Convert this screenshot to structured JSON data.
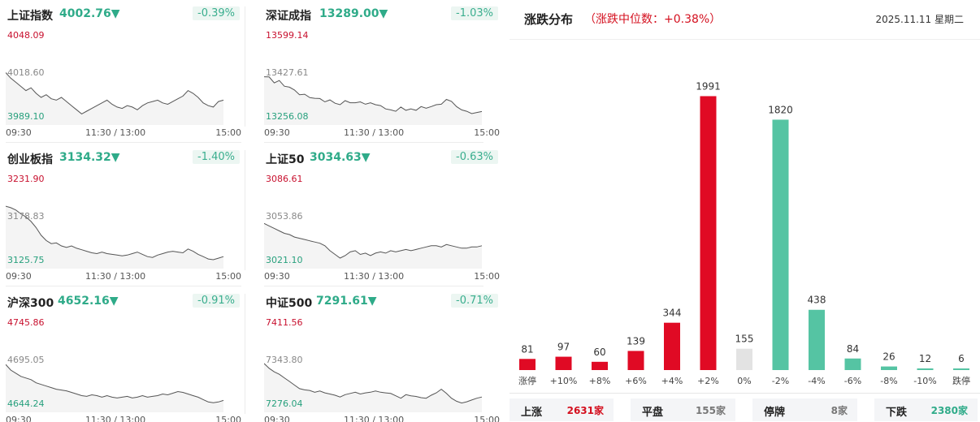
{
  "colors": {
    "up": "#e00a24",
    "down": "#55c4a3",
    "flat": "#e3e3e3",
    "price_down": "#2fab89"
  },
  "indices": [
    {
      "name": "上证指数",
      "price": "4002.76▼",
      "change": "-0.39%",
      "ymax": "4048.09",
      "ymid": "4018.60",
      "ymin": "3989.10",
      "x_start": "09:30",
      "x_mid": "11:30 / 13:00",
      "x_end": "15:00",
      "series": [
        4023,
        4019,
        4016,
        4013,
        4010,
        4012,
        4008,
        4005,
        4007,
        4004,
        4003,
        4005,
        4002,
        3999,
        3996,
        3993,
        3995,
        3997,
        3999,
        4001,
        4003,
        4000,
        3998,
        3997,
        3999,
        3998,
        3996,
        3999,
        4001,
        4002,
        4003,
        4001,
        4000,
        4002,
        4004,
        4006,
        4010,
        4008,
        4005,
        4001,
        3999,
        3998,
        4002,
        4003
      ]
    },
    {
      "name": "深证成指",
      "price": "13289.00▼",
      "change": "-1.03%",
      "ymax": "13599.14",
      "ymid": "13427.61",
      "ymin": "13256.08",
      "x_start": "09:30",
      "x_mid": "11:30 / 13:00",
      "x_end": "15:00",
      "series": [
        13436,
        13435,
        13410,
        13420,
        13396,
        13392,
        13380,
        13360,
        13362,
        13348,
        13345,
        13344,
        13330,
        13338,
        13324,
        13318,
        13335,
        13326,
        13326,
        13330,
        13320,
        13326,
        13318,
        13314,
        13300,
        13296,
        13290,
        13308,
        13294,
        13300,
        13294,
        13310,
        13303,
        13310,
        13318,
        13320,
        13340,
        13332,
        13310,
        13296,
        13290,
        13280,
        13285,
        13289
      ]
    },
    {
      "name": "创业板指",
      "price": "3134.32▼",
      "change": "-1.40%",
      "ymax": "3231.90",
      "ymid": "3178.83",
      "ymin": "3125.75",
      "x_start": "09:30",
      "x_mid": "11:30 / 13:00",
      "x_end": "15:00",
      "series": [
        3200,
        3198,
        3195,
        3190,
        3186,
        3180,
        3172,
        3162,
        3155,
        3151,
        3152,
        3148,
        3146,
        3148,
        3145,
        3143,
        3141,
        3139,
        3138,
        3140,
        3138,
        3137,
        3136,
        3135,
        3136,
        3138,
        3140,
        3137,
        3134,
        3133,
        3136,
        3138,
        3140,
        3141,
        3140,
        3139,
        3144,
        3141,
        3137,
        3134,
        3131,
        3130,
        3132,
        3134
      ]
    },
    {
      "name": "上证50",
      "price": "3034.63▼",
      "change": "-0.63%",
      "ymax": "3086.61",
      "ymid": "3053.86",
      "ymin": "3021.10",
      "x_start": "09:30",
      "x_mid": "11:30 / 13:00",
      "x_end": "15:00",
      "series": [
        3053,
        3051,
        3049,
        3047,
        3045,
        3044,
        3042,
        3041,
        3040,
        3039,
        3038,
        3037,
        3035,
        3031,
        3028,
        3025,
        3027,
        3030,
        3031,
        3028,
        3029,
        3027,
        3029,
        3030,
        3029,
        3031,
        3030,
        3031,
        3032,
        3031,
        3032,
        3033,
        3034,
        3035,
        3035,
        3034,
        3036,
        3035,
        3034,
        3033,
        3033,
        3034,
        3034,
        3035
      ]
    },
    {
      "name": "沪深300",
      "price": "4652.16▼",
      "change": "-0.91%",
      "ymax": "4745.86",
      "ymid": "4695.05",
      "ymin": "4644.24",
      "x_start": "09:30",
      "x_mid": "11:30 / 13:00",
      "x_end": "15:00",
      "series": [
        4697,
        4690,
        4686,
        4682,
        4680,
        4678,
        4674,
        4672,
        4670,
        4668,
        4666,
        4665,
        4664,
        4662,
        4660,
        4658,
        4657,
        4659,
        4658,
        4656,
        4658,
        4656,
        4655,
        4656,
        4657,
        4655,
        4656,
        4658,
        4656,
        4657,
        4658,
        4660,
        4659,
        4661,
        4663,
        4662,
        4660,
        4658,
        4656,
        4653,
        4650,
        4649,
        4650,
        4652
      ]
    },
    {
      "name": "中证500",
      "price": "7291.61▼",
      "change": "-0.71%",
      "ymax": "7411.56",
      "ymid": "7343.80",
      "ymin": "7276.04",
      "x_start": "09:30",
      "x_mid": "11:30 / 13:00",
      "x_end": "15:00",
      "series": [
        7348,
        7340,
        7334,
        7330,
        7324,
        7318,
        7312,
        7306,
        7304,
        7303,
        7300,
        7302,
        7299,
        7297,
        7295,
        7292,
        7296,
        7298,
        7300,
        7297,
        7299,
        7300,
        7302,
        7300,
        7299,
        7298,
        7294,
        7290,
        7296,
        7294,
        7293,
        7291,
        7290,
        7295,
        7299,
        7305,
        7298,
        7290,
        7285,
        7282,
        7284,
        7287,
        7290,
        7292
      ]
    }
  ],
  "distribution": {
    "title": "涨跌分布",
    "subtitle": "（涨跌中位数：+0.38%）",
    "date": "2025.11.11 星期二"
  },
  "chart_data": {
    "type": "bar",
    "categories": [
      "涨停",
      "+10%",
      "+8%",
      "+6%",
      "+4%",
      "+2%",
      "0%",
      "-2%",
      "-4%",
      "-6%",
      "-8%",
      "-10%",
      "跌停"
    ],
    "values": [
      81,
      97,
      60,
      139,
      344,
      1991,
      155,
      1820,
      438,
      84,
      26,
      12,
      6
    ],
    "bar_colors": [
      "#e00a24",
      "#e00a24",
      "#e00a24",
      "#e00a24",
      "#e00a24",
      "#e00a24",
      "#e3e3e3",
      "#55c4a3",
      "#55c4a3",
      "#55c4a3",
      "#55c4a3",
      "#55c4a3",
      "#55c4a3"
    ],
    "ylim": [
      0,
      2100
    ],
    "grid": false
  },
  "summary": [
    {
      "label": "上涨",
      "value": "2631家",
      "color": "#d4101f"
    },
    {
      "label": "平盘",
      "value": "155家",
      "color": "#777777"
    },
    {
      "label": "停牌",
      "value": "8家",
      "color": "#777777"
    },
    {
      "label": "下跌",
      "value": "2380家",
      "color": "#2fab89"
    }
  ]
}
